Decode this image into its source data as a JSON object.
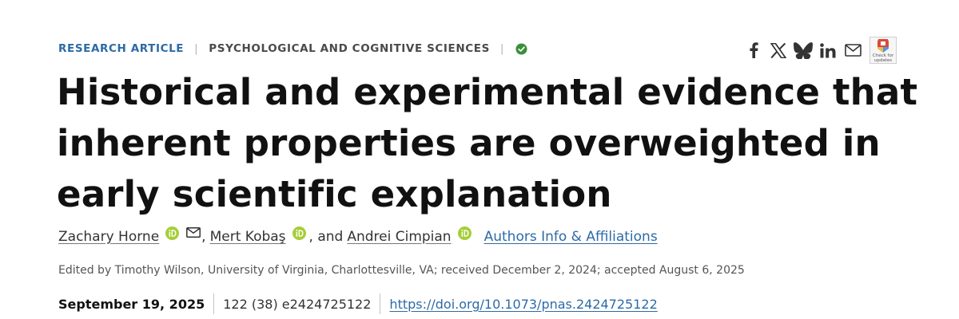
{
  "header": {
    "article_type": "RESEARCH ARTICLE",
    "separator": "|",
    "subject": "PSYCHOLOGICAL AND COGNITIVE SCIENCES",
    "verified_icon": "check-circle-icon"
  },
  "share": {
    "icons": [
      "facebook-icon",
      "x-icon",
      "bluesky-icon",
      "linkedin-icon",
      "mail-icon"
    ],
    "crossmark_label_1": "Check for",
    "crossmark_label_2": "updates"
  },
  "article": {
    "title": "Historical and experimental evidence that inherent properties are overweighted in early scientific explanation"
  },
  "authors": {
    "list": [
      {
        "name": "Zachary Horne",
        "orcid_icon": "orcid-icon",
        "has_email": true
      },
      {
        "name": "Mert Kobaş",
        "orcid_icon": "orcid-icon",
        "has_email": false
      },
      {
        "name": "Andrei Cimpian",
        "orcid_icon": "orcid-icon",
        "has_email": false
      }
    ],
    "sep_1": ",",
    "sep_2": ", and",
    "affiliations_link": "Authors Info & Affiliations"
  },
  "editorial": {
    "text": "Edited by Timothy Wilson, University of Virginia, Charlottesville, VA; received December 2, 2024; accepted August 6, 2025"
  },
  "publication": {
    "date": "September 19, 2025",
    "citation": "122 (38) e2424725122",
    "doi": "https://doi.org/10.1073/pnas.2424725122"
  },
  "colors": {
    "link_blue": "#2d6aa6",
    "orcid_green": "#a6ce39",
    "verified_green": "#3a8f3a",
    "title_black": "#111111"
  }
}
